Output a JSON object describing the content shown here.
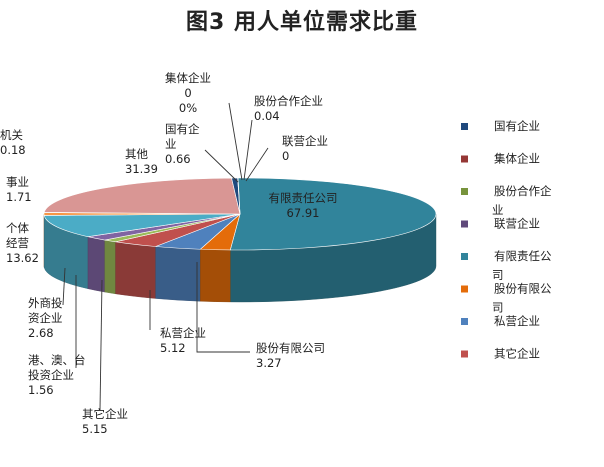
{
  "title": "图3  用人单位需求比重",
  "chart_data": {
    "type": "pie",
    "title": "图3  用人单位需求比重",
    "slices": [
      {
        "name": "有限责任公司",
        "value": 67.91,
        "color": "#31849b",
        "label_lines": [
          "有限责任公司",
          "67.91"
        ]
      },
      {
        "name": "股份有限公司",
        "value": 3.27,
        "color": "#e46c0a",
        "label_lines": [
          "股份有限公司",
          "3.27"
        ]
      },
      {
        "name": "私营企业",
        "value": 5.12,
        "color": "#4f81bd",
        "label_lines": [
          "私营企业",
          "5.12"
        ]
      },
      {
        "name": "其它企业",
        "value": 5.15,
        "color": "#c0504d",
        "label_lines": [
          "其它企业",
          "5.15"
        ]
      },
      {
        "name": "港、澳、台投资企业",
        "value": 1.56,
        "color": "#9bbb59",
        "label_lines": [
          "港、澳、台",
          "投资企业",
          "1.56"
        ]
      },
      {
        "name": "外商投资企业",
        "value": 2.68,
        "color": "#8064a2",
        "label_lines": [
          "外商投",
          "资企业",
          "2.68"
        ]
      },
      {
        "name": "个体经营",
        "value": 13.62,
        "color": "#4bacc6",
        "label_lines": [
          "个体",
          "经营",
          "13.62"
        ]
      },
      {
        "name": "事业",
        "value": 1.71,
        "color": "#f79646",
        "label_lines": [
          "事业",
          "1.71"
        ]
      },
      {
        "name": "机关",
        "value": 0.18,
        "color": "#2c4d75",
        "label_lines": [
          "机关",
          "0.18"
        ]
      },
      {
        "name": "其他",
        "value": 31.39,
        "color": "#d99694",
        "label_lines": [
          "其他",
          "31.39"
        ]
      },
      {
        "name": "国有企业",
        "value": 0.66,
        "color": "#1f497d",
        "label_lines": [
          "国有企",
          "业",
          "0.66"
        ]
      },
      {
        "name": "集体企业",
        "value": 0,
        "color": "#953735",
        "label_lines": [
          "集体企业",
          "0",
          "0%"
        ]
      },
      {
        "name": "股份合作企业",
        "value": 0.04,
        "color": "#77933c",
        "label_lines": [
          "股份合作企业",
          "0.04"
        ]
      },
      {
        "name": "联营企业",
        "value": 0,
        "color": "#604a7b",
        "label_lines": [
          "联营企业",
          "0"
        ]
      }
    ],
    "legend": [
      {
        "label_lines": [
          "国有企业"
        ],
        "color": "#1f497d"
      },
      {
        "label_lines": [
          "集体企业"
        ],
        "color": "#953735"
      },
      {
        "label_lines": [
          "股份合作企",
          "业"
        ],
        "color": "#77933c"
      },
      {
        "label_lines": [
          "联营企业"
        ],
        "color": "#604a7b"
      },
      {
        "label_lines": [
          "有限责任公",
          "司"
        ],
        "color": "#31849b"
      },
      {
        "label_lines": [
          "股份有限公",
          "司"
        ],
        "color": "#e46c0a"
      },
      {
        "label_lines": [
          "私营企业"
        ],
        "color": "#4f81bd"
      },
      {
        "label_lines": [
          "其它企业"
        ],
        "color": "#c0504d"
      }
    ],
    "legend_position": "right"
  }
}
